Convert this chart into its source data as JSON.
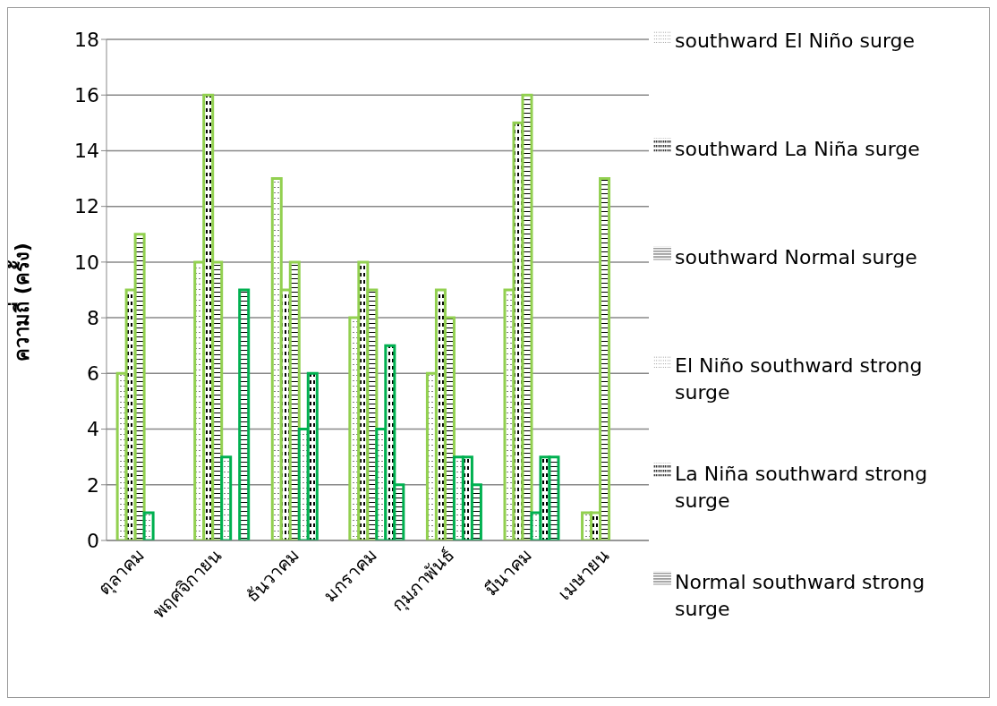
{
  "chart_data": {
    "type": "bar",
    "ylabel": "ความถี่ (ครั้ง)",
    "categories": [
      "ตุลาคม",
      "พฤศจิกายน",
      "ธันวาคม",
      "มกราคม",
      "กุมภาพันธ์",
      "มีนาคม",
      "เมษายน"
    ],
    "series": [
      {
        "name": "southward El Niño surge",
        "color": "#92d050",
        "values": [
          6,
          10,
          13,
          8,
          6,
          9,
          1
        ]
      },
      {
        "name": "southward La Niña surge",
        "color": "#92d050",
        "values": [
          9,
          16,
          9,
          10,
          9,
          15,
          1
        ]
      },
      {
        "name": "southward Normal surge",
        "color": "#92d050",
        "values": [
          11,
          10,
          10,
          9,
          8,
          16,
          13
        ]
      },
      {
        "name": "El Niño southward strong surge",
        "color": "#00b050",
        "values": [
          1,
          3,
          4,
          4,
          3,
          1,
          0
        ]
      },
      {
        "name": "La Niña southward strong surge",
        "color": "#00b050",
        "values": [
          0,
          0,
          6,
          7,
          3,
          3,
          0
        ]
      },
      {
        "name": "Normal southward strong surge",
        "color": "#00b050",
        "values": [
          0,
          9,
          0,
          2,
          2,
          3,
          0
        ]
      }
    ],
    "ylim": [
      0,
      18
    ],
    "yticks": [
      0,
      2,
      4,
      6,
      8,
      10,
      12,
      14,
      16,
      18
    ],
    "grid": "y",
    "legend": "right"
  }
}
